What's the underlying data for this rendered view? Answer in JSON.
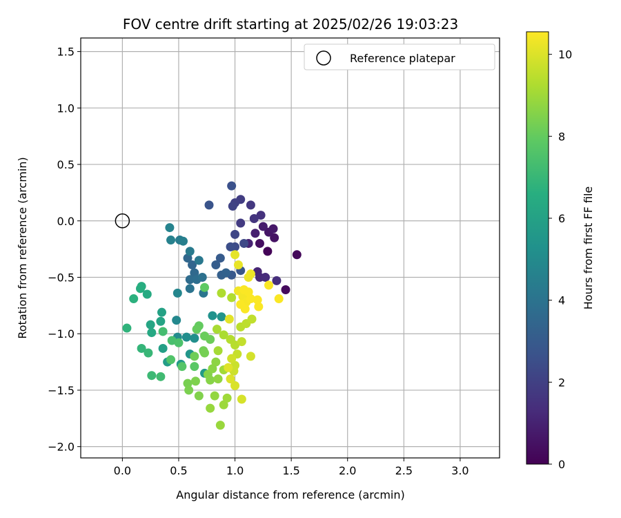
{
  "chart_data": {
    "type": "scatter",
    "title": "FOV centre drift starting at 2025/02/26 19:03:23",
    "xlabel": "Angular distance from reference (arcmin)",
    "ylabel": "Rotation from reference (arcmin)",
    "xlim": [
      -0.37,
      3.35
    ],
    "ylim": [
      -2.1,
      1.62
    ],
    "xticks": [
      "0.0",
      "0.5",
      "1.0",
      "1.5",
      "2.0",
      "2.5",
      "3.0"
    ],
    "xtick_values": [
      0,
      0.5,
      1.0,
      1.5,
      2.0,
      2.5,
      3.0
    ],
    "yticks": [
      "−2.0",
      "−1.5",
      "−1.0",
      "−0.5",
      "0.0",
      "0.5",
      "1.0",
      "1.5"
    ],
    "ytick_values": [
      -2.0,
      -1.5,
      -1.0,
      -0.5,
      0.0,
      0.5,
      1.0,
      1.5
    ],
    "grid": true,
    "legend": {
      "placement": "top-right",
      "entries": [
        "Reference platepar"
      ]
    },
    "reference_point": {
      "x": 0.0,
      "y": 0.0,
      "marker": "open-circle"
    },
    "colorbar": {
      "label": "Hours from first FF file",
      "colormap": "viridis",
      "range": [
        0,
        10.55
      ],
      "ticks": [
        "0",
        "2",
        "4",
        "6",
        "8",
        "10"
      ],
      "tick_values": [
        0,
        2,
        4,
        6,
        8,
        10
      ]
    },
    "series": [
      {
        "points": [
          {
            "x": 1.29,
            "y": -0.27,
            "t": 0.1
          },
          {
            "x": 1.55,
            "y": -0.3,
            "t": 0.2
          },
          {
            "x": 1.45,
            "y": -0.61,
            "t": 0.3
          },
          {
            "x": 1.22,
            "y": -0.2,
            "t": 0.4
          },
          {
            "x": 1.35,
            "y": -0.15,
            "t": 0.5
          },
          {
            "x": 1.3,
            "y": -0.1,
            "t": 0.6
          },
          {
            "x": 1.34,
            "y": -0.07,
            "t": 0.7
          },
          {
            "x": 1.25,
            "y": -0.05,
            "t": 0.8
          },
          {
            "x": 1.18,
            "y": -0.11,
            "t": 0.9
          },
          {
            "x": 1.12,
            "y": -0.2,
            "t": 1.0
          },
          {
            "x": 1.2,
            "y": -0.45,
            "t": 1.1
          },
          {
            "x": 1.22,
            "y": -0.5,
            "t": 1.2
          },
          {
            "x": 1.27,
            "y": -0.5,
            "t": 1.3
          },
          {
            "x": 1.37,
            "y": -0.53,
            "t": 1.4
          },
          {
            "x": 1.23,
            "y": 0.05,
            "t": 1.5
          },
          {
            "x": 1.17,
            "y": 0.02,
            "t": 1.6
          },
          {
            "x": 1.14,
            "y": 0.14,
            "t": 1.7
          },
          {
            "x": 1.05,
            "y": -0.02,
            "t": 1.8
          },
          {
            "x": 1.05,
            "y": 0.19,
            "t": 1.9
          },
          {
            "x": 1.0,
            "y": 0.16,
            "t": 2.0
          },
          {
            "x": 0.98,
            "y": 0.13,
            "t": 2.1
          },
          {
            "x": 1.0,
            "y": -0.12,
            "t": 2.2
          },
          {
            "x": 1.08,
            "y": -0.2,
            "t": 2.3
          },
          {
            "x": 1.0,
            "y": -0.23,
            "t": 2.4
          },
          {
            "x": 0.96,
            "y": -0.23,
            "t": 2.5
          },
          {
            "x": 0.97,
            "y": 0.31,
            "t": 2.6
          },
          {
            "x": 0.77,
            "y": 0.14,
            "t": 2.7
          },
          {
            "x": 1.05,
            "y": -0.44,
            "t": 2.8
          },
          {
            "x": 0.97,
            "y": -0.48,
            "t": 2.9
          },
          {
            "x": 0.87,
            "y": -0.33,
            "t": 3.0
          },
          {
            "x": 0.83,
            "y": -0.39,
            "t": 3.1
          },
          {
            "x": 0.88,
            "y": -0.48,
            "t": 3.2
          },
          {
            "x": 0.92,
            "y": -0.46,
            "t": 3.3
          },
          {
            "x": 0.62,
            "y": -0.39,
            "t": 3.4
          },
          {
            "x": 0.58,
            "y": -0.33,
            "t": 3.5
          },
          {
            "x": 0.64,
            "y": -0.46,
            "t": 3.6
          },
          {
            "x": 0.6,
            "y": -0.52,
            "t": 3.7
          },
          {
            "x": 0.66,
            "y": -0.52,
            "t": 3.8
          },
          {
            "x": 0.71,
            "y": -0.5,
            "t": 3.9
          },
          {
            "x": 0.6,
            "y": -0.6,
            "t": 4.0
          },
          {
            "x": 0.72,
            "y": -0.64,
            "t": 4.1
          },
          {
            "x": 0.68,
            "y": -0.35,
            "t": 4.2
          },
          {
            "x": 0.6,
            "y": -0.27,
            "t": 4.3
          },
          {
            "x": 0.51,
            "y": -0.17,
            "t": 4.4
          },
          {
            "x": 0.54,
            "y": -0.18,
            "t": 4.5
          },
          {
            "x": 0.43,
            "y": -0.17,
            "t": 4.6
          },
          {
            "x": 0.42,
            "y": -0.06,
            "t": 4.7
          },
          {
            "x": 0.49,
            "y": -0.64,
            "t": 4.8
          },
          {
            "x": 0.48,
            "y": -0.88,
            "t": 4.9
          },
          {
            "x": 0.49,
            "y": -1.03,
            "t": 5.0
          },
          {
            "x": 0.57,
            "y": -1.03,
            "t": 5.1
          },
          {
            "x": 0.64,
            "y": -1.04,
            "t": 5.2
          },
          {
            "x": 0.8,
            "y": -0.84,
            "t": 5.3
          },
          {
            "x": 0.88,
            "y": -0.85,
            "t": 5.4
          },
          {
            "x": 0.6,
            "y": -1.18,
            "t": 5.5
          },
          {
            "x": 0.52,
            "y": -1.27,
            "t": 5.6
          },
          {
            "x": 0.73,
            "y": -1.35,
            "t": 5.7
          },
          {
            "x": 0.4,
            "y": -1.25,
            "t": 5.8
          },
          {
            "x": 0.36,
            "y": -1.13,
            "t": 5.9
          },
          {
            "x": 0.35,
            "y": -0.81,
            "t": 6.0
          },
          {
            "x": 0.34,
            "y": -0.89,
            "t": 6.1
          },
          {
            "x": 0.25,
            "y": -0.92,
            "t": 6.2
          },
          {
            "x": 0.26,
            "y": -0.99,
            "t": 6.3
          },
          {
            "x": 0.22,
            "y": -0.65,
            "t": 6.4
          },
          {
            "x": 0.17,
            "y": -0.58,
            "t": 6.5
          },
          {
            "x": 0.16,
            "y": -0.6,
            "t": 6.6
          },
          {
            "x": 0.1,
            "y": -0.69,
            "t": 6.7
          },
          {
            "x": 0.04,
            "y": -0.95,
            "t": 6.8
          },
          {
            "x": 0.17,
            "y": -1.13,
            "t": 6.9
          },
          {
            "x": 0.23,
            "y": -1.17,
            "t": 7.0
          },
          {
            "x": 0.26,
            "y": -1.37,
            "t": 7.1
          },
          {
            "x": 0.34,
            "y": -1.38,
            "t": 7.2
          },
          {
            "x": 0.36,
            "y": -0.98,
            "t": 7.3
          },
          {
            "x": 0.44,
            "y": -1.06,
            "t": 7.4
          },
          {
            "x": 0.5,
            "y": -1.08,
            "t": 7.5
          },
          {
            "x": 0.43,
            "y": -1.23,
            "t": 7.6
          },
          {
            "x": 0.53,
            "y": -1.29,
            "t": 7.7
          },
          {
            "x": 0.64,
            "y": -1.29,
            "t": 7.8
          },
          {
            "x": 0.73,
            "y": -0.59,
            "t": 7.9
          },
          {
            "x": 0.68,
            "y": -0.93,
            "t": 8.0
          },
          {
            "x": 0.66,
            "y": -0.96,
            "t": 8.05
          },
          {
            "x": 0.73,
            "y": -1.02,
            "t": 8.1
          },
          {
            "x": 0.78,
            "y": -1.05,
            "t": 8.15
          },
          {
            "x": 0.64,
            "y": -1.2,
            "t": 8.2
          },
          {
            "x": 0.72,
            "y": -1.15,
            "t": 8.25
          },
          {
            "x": 0.73,
            "y": -1.17,
            "t": 8.3
          },
          {
            "x": 0.58,
            "y": -1.44,
            "t": 8.35
          },
          {
            "x": 0.59,
            "y": -1.5,
            "t": 8.4
          },
          {
            "x": 0.65,
            "y": -1.42,
            "t": 8.45
          },
          {
            "x": 0.68,
            "y": -1.55,
            "t": 8.5
          },
          {
            "x": 0.76,
            "y": -1.36,
            "t": 8.55
          },
          {
            "x": 0.78,
            "y": -1.41,
            "t": 8.6
          },
          {
            "x": 0.8,
            "y": -1.31,
            "t": 8.65
          },
          {
            "x": 0.83,
            "y": -1.25,
            "t": 8.7
          },
          {
            "x": 0.85,
            "y": -1.4,
            "t": 8.75
          },
          {
            "x": 0.82,
            "y": -1.55,
            "t": 8.8
          },
          {
            "x": 0.78,
            "y": -1.66,
            "t": 8.85
          },
          {
            "x": 0.87,
            "y": -1.81,
            "t": 8.9
          },
          {
            "x": 0.9,
            "y": -1.63,
            "t": 8.95
          },
          {
            "x": 0.93,
            "y": -1.57,
            "t": 9.0
          },
          {
            "x": 0.9,
            "y": -1.32,
            "t": 9.05
          },
          {
            "x": 0.85,
            "y": -1.15,
            "t": 9.1
          },
          {
            "x": 0.84,
            "y": -0.96,
            "t": 9.15
          },
          {
            "x": 0.9,
            "y": -1.01,
            "t": 9.2
          },
          {
            "x": 0.88,
            "y": -0.64,
            "t": 9.25
          },
          {
            "x": 0.97,
            "y": -0.68,
            "t": 9.3
          },
          {
            "x": 0.96,
            "y": -1.05,
            "t": 9.35
          },
          {
            "x": 1.0,
            "y": -1.1,
            "t": 9.4
          },
          {
            "x": 1.05,
            "y": -0.94,
            "t": 9.45
          },
          {
            "x": 1.1,
            "y": -0.91,
            "t": 9.5
          },
          {
            "x": 1.15,
            "y": -0.87,
            "t": 9.55
          },
          {
            "x": 1.06,
            "y": -1.07,
            "t": 9.6
          },
          {
            "x": 1.02,
            "y": -1.18,
            "t": 9.65
          },
          {
            "x": 1.0,
            "y": -1.28,
            "t": 9.7
          },
          {
            "x": 0.99,
            "y": -1.33,
            "t": 9.75
          },
          {
            "x": 0.97,
            "y": -1.22,
            "t": 9.8
          },
          {
            "x": 1.14,
            "y": -1.2,
            "t": 9.85
          },
          {
            "x": 1.06,
            "y": -1.58,
            "t": 9.9
          },
          {
            "x": 1.0,
            "y": -1.46,
            "t": 9.95
          },
          {
            "x": 0.96,
            "y": -1.4,
            "t": 10.0
          },
          {
            "x": 0.94,
            "y": -1.3,
            "t": 10.05
          },
          {
            "x": 0.95,
            "y": -0.87,
            "t": 10.1
          },
          {
            "x": 1.0,
            "y": -0.3,
            "t": 10.15
          },
          {
            "x": 1.03,
            "y": -0.39,
            "t": 10.2
          },
          {
            "x": 1.12,
            "y": -0.5,
            "t": 10.25
          },
          {
            "x": 1.14,
            "y": -0.47,
            "t": 10.3
          },
          {
            "x": 1.03,
            "y": -0.62,
            "t": 10.35
          },
          {
            "x": 1.07,
            "y": -0.67,
            "t": 10.4
          },
          {
            "x": 1.1,
            "y": -0.72,
            "t": 10.45
          },
          {
            "x": 1.05,
            "y": -0.74,
            "t": 10.5
          },
          {
            "x": 1.09,
            "y": -0.78,
            "t": 10.5
          },
          {
            "x": 1.14,
            "y": -0.69,
            "t": 10.5
          },
          {
            "x": 1.2,
            "y": -0.7,
            "t": 10.5
          },
          {
            "x": 1.21,
            "y": -0.76,
            "t": 10.5
          },
          {
            "x": 1.3,
            "y": -0.57,
            "t": 10.5
          },
          {
            "x": 1.39,
            "y": -0.69,
            "t": 10.5
          },
          {
            "x": 1.12,
            "y": -0.63,
            "t": 10.5
          },
          {
            "x": 1.08,
            "y": -0.61,
            "t": 10.5
          }
        ]
      }
    ]
  }
}
